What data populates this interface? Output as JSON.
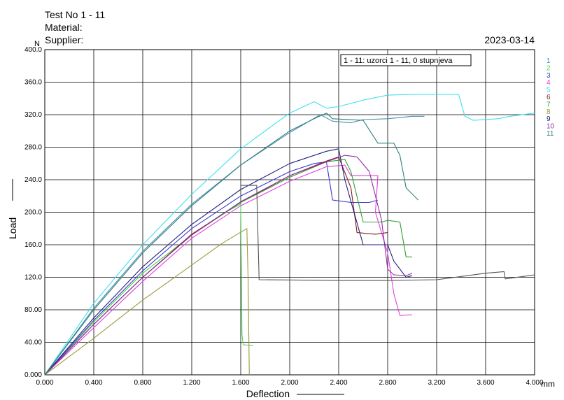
{
  "header": {
    "test_no": "Test No  1 - 11",
    "material": "Material:",
    "supplier": "Supplier:",
    "date": "2023-03-14",
    "y_unit": "N"
  },
  "chart_data": {
    "type": "line",
    "xlabel": "Deflection",
    "ylabel": "Load",
    "x_unit": "mm",
    "xlim": [
      0,
      4.0
    ],
    "ylim": [
      0,
      400
    ],
    "grid": true,
    "legend_position": "right",
    "annotation": "1 - 11: uzorci 1 - 11, 0 stupnjeva",
    "x_tick_labels": [
      "0.000",
      "0.400",
      "0.800",
      "1.200",
      "1.600",
      "2.000",
      "2.400",
      "2.800",
      "3.200",
      "3.600",
      "4.000"
    ],
    "y_tick_labels": [
      "0.000",
      "40.00",
      "80.00",
      "120.0",
      "160.0",
      "200.0",
      "240.0",
      "280.0",
      "320.0",
      "360.0",
      "400.0"
    ],
    "series": [
      {
        "name": "1",
        "color": "#4a8fb0",
        "points": [
          [
            0,
            0
          ],
          [
            0.4,
            82
          ],
          [
            0.8,
            152
          ],
          [
            1.2,
            210
          ],
          [
            1.6,
            258
          ],
          [
            2.0,
            298
          ],
          [
            2.25,
            320
          ],
          [
            2.35,
            312
          ],
          [
            2.5,
            310
          ],
          [
            2.6,
            314
          ],
          [
            2.8,
            315
          ],
          [
            3.0,
            318
          ],
          [
            3.1,
            318
          ]
        ]
      },
      {
        "name": "2",
        "color": "#4ed84e",
        "points": [
          [
            0,
            0
          ],
          [
            0.4,
            65
          ],
          [
            0.8,
            125
          ],
          [
            1.2,
            172
          ],
          [
            1.45,
            198
          ],
          [
            1.6,
            210
          ],
          [
            1.61,
            50
          ],
          [
            1.62,
            37
          ],
          [
            1.7,
            36
          ]
        ]
      },
      {
        "name": "3",
        "color": "#3a3acf",
        "points": [
          [
            0,
            0
          ],
          [
            0.4,
            67
          ],
          [
            0.8,
            128
          ],
          [
            1.2,
            180
          ],
          [
            1.6,
            220
          ],
          [
            2.0,
            250
          ],
          [
            2.2,
            260
          ],
          [
            2.3,
            262
          ],
          [
            2.35,
            215
          ],
          [
            2.5,
            212
          ],
          [
            2.65,
            212
          ],
          [
            2.72,
            215
          ]
        ]
      },
      {
        "name": "4",
        "color": "#e040e0",
        "points": [
          [
            0,
            0
          ],
          [
            0.4,
            58
          ],
          [
            0.8,
            115
          ],
          [
            1.2,
            168
          ],
          [
            1.6,
            208
          ],
          [
            2.0,
            238
          ],
          [
            2.3,
            256
          ],
          [
            2.45,
            258
          ],
          [
            2.5,
            245
          ],
          [
            2.72,
            245
          ],
          [
            2.7,
            200
          ],
          [
            2.8,
            150
          ],
          [
            2.85,
            100
          ],
          [
            2.9,
            73
          ],
          [
            3.0,
            74
          ]
        ]
      },
      {
        "name": "5",
        "color": "#40e0f0",
        "points": [
          [
            0,
            0
          ],
          [
            0.4,
            88
          ],
          [
            0.8,
            160
          ],
          [
            1.2,
            222
          ],
          [
            1.6,
            278
          ],
          [
            2.0,
            322
          ],
          [
            2.2,
            336
          ],
          [
            2.3,
            328
          ],
          [
            2.4,
            330
          ],
          [
            2.6,
            338
          ],
          [
            2.8,
            344
          ],
          [
            3.0,
            345
          ],
          [
            3.2,
            345
          ],
          [
            3.38,
            345
          ],
          [
            3.43,
            318
          ],
          [
            3.5,
            313
          ],
          [
            3.7,
            315
          ],
          [
            3.8,
            318
          ],
          [
            4.0,
            322
          ]
        ]
      },
      {
        "name": "6",
        "color": "#8b1a1a",
        "points": [
          [
            0,
            0
          ],
          [
            0.4,
            62
          ],
          [
            0.8,
            120
          ],
          [
            1.2,
            173
          ],
          [
            1.6,
            212
          ],
          [
            2.0,
            245
          ],
          [
            2.3,
            263
          ],
          [
            2.4,
            268
          ],
          [
            2.5,
            230
          ],
          [
            2.55,
            175
          ],
          [
            2.7,
            173
          ],
          [
            2.8,
            175
          ]
        ]
      },
      {
        "name": "7",
        "color": "#30a030",
        "points": [
          [
            0,
            0
          ],
          [
            0.4,
            62
          ],
          [
            0.8,
            120
          ],
          [
            1.2,
            172
          ],
          [
            1.6,
            212
          ],
          [
            2.0,
            243
          ],
          [
            2.3,
            262
          ],
          [
            2.45,
            265
          ],
          [
            2.5,
            250
          ],
          [
            2.6,
            188
          ],
          [
            2.75,
            188
          ],
          [
            2.8,
            190
          ],
          [
            2.9,
            188
          ],
          [
            2.95,
            145
          ],
          [
            3.0,
            145
          ]
        ]
      },
      {
        "name": "8",
        "color": "#9a9a3a",
        "points": [
          [
            0,
            0
          ],
          [
            0.4,
            45
          ],
          [
            0.8,
            92
          ],
          [
            1.2,
            135
          ],
          [
            1.45,
            162
          ],
          [
            1.65,
            180
          ],
          [
            1.66,
            120
          ],
          [
            1.67,
            0
          ]
        ]
      },
      {
        "name": "9",
        "color": "#202080",
        "points": [
          [
            0,
            0
          ],
          [
            0.4,
            70
          ],
          [
            0.8,
            133
          ],
          [
            1.2,
            185
          ],
          [
            1.6,
            228
          ],
          [
            2.0,
            260
          ],
          [
            2.3,
            275
          ],
          [
            2.4,
            278
          ],
          [
            2.45,
            240
          ],
          [
            2.6,
            160
          ],
          [
            2.8,
            160
          ],
          [
            2.85,
            140
          ],
          [
            2.95,
            120
          ],
          [
            3.0,
            122
          ]
        ]
      },
      {
        "name": "10",
        "color": "#9030a0",
        "points": [
          [
            0,
            0
          ],
          [
            0.4,
            62
          ],
          [
            0.8,
            120
          ],
          [
            1.2,
            172
          ],
          [
            1.6,
            213
          ],
          [
            2.0,
            245
          ],
          [
            2.3,
            262
          ],
          [
            2.45,
            270
          ],
          [
            2.55,
            268
          ],
          [
            2.65,
            250
          ],
          [
            2.75,
            190
          ],
          [
            2.8,
            130
          ],
          [
            2.85,
            123
          ],
          [
            2.95,
            122
          ],
          [
            3.0,
            125
          ]
        ]
      },
      {
        "name": "11",
        "color": "#2f7f7f",
        "points": [
          [
            0,
            0
          ],
          [
            0.4,
            80
          ],
          [
            0.8,
            150
          ],
          [
            1.2,
            208
          ],
          [
            1.6,
            258
          ],
          [
            2.0,
            300
          ],
          [
            2.2,
            315
          ],
          [
            2.3,
            322
          ],
          [
            2.35,
            315
          ],
          [
            2.6,
            313
          ],
          [
            2.72,
            285
          ],
          [
            2.85,
            285
          ],
          [
            2.9,
            270
          ],
          [
            2.95,
            230
          ],
          [
            3.05,
            215
          ]
        ]
      },
      {
        "name": "",
        "color": "#555555",
        "points": [
          [
            1.6,
            233
          ],
          [
            1.73,
            233
          ],
          [
            1.75,
            117
          ],
          [
            2.4,
            116
          ],
          [
            2.8,
            116
          ],
          [
            3.2,
            117
          ],
          [
            3.6,
            125
          ],
          [
            3.75,
            127
          ],
          [
            3.76,
            118
          ],
          [
            4.0,
            123
          ]
        ]
      }
    ]
  }
}
